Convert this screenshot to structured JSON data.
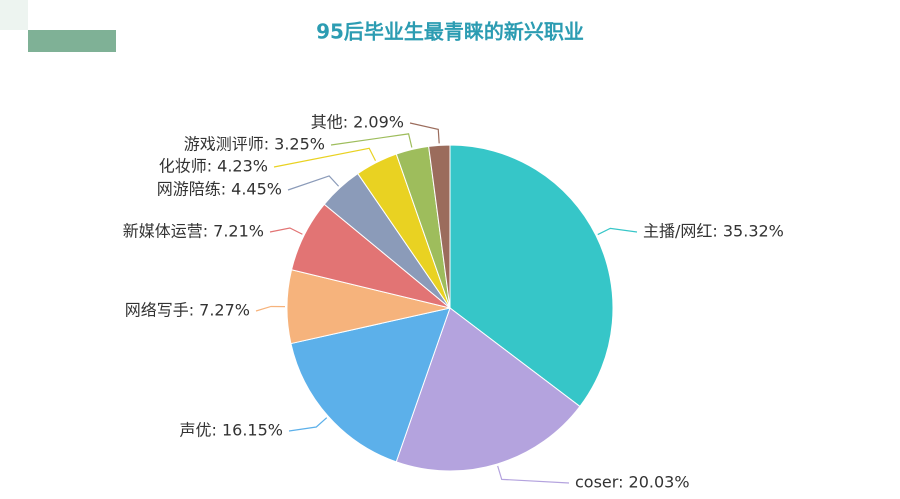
{
  "chart_data": {
    "type": "pie",
    "title": "95后毕业生最青睐的新兴职业",
    "categories": [
      "主播/网红",
      "coser",
      "声优",
      "网络写手",
      "新媒体运营",
      "网游陪练",
      "化妆师",
      "游戏测评师",
      "其他"
    ],
    "values": [
      35.32,
      20.03,
      16.15,
      7.27,
      7.21,
      4.45,
      4.23,
      3.25,
      2.09
    ],
    "value_labels": [
      "主播/网红: 35.32%",
      "coser: 20.03%",
      "声优: 16.15%",
      "网络写手: 7.27%",
      "新媒体运营: 7.21%",
      "网游陪练: 4.45%",
      "化妆师: 4.23%",
      "游戏测评师: 3.25%",
      "其他: 2.09%"
    ],
    "colors": [
      "#36c6c8",
      "#b4a3de",
      "#5cb0ea",
      "#f6b37c",
      "#e27474",
      "#8b9bb9",
      "#e9d222",
      "#9ebd5c",
      "#9b6c5c"
    ]
  }
}
